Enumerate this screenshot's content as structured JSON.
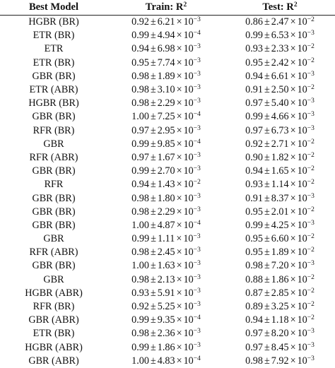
{
  "headers": {
    "model": "Best Model",
    "train": "Train: R",
    "test": "Test: R",
    "sq": "2"
  },
  "symbols": {
    "pm": "±",
    "times": "×",
    "base": "10"
  },
  "rows": [
    {
      "model": "HGBR (BR)",
      "train": {
        "m": "0.92",
        "e": "6.21",
        "x": "−3"
      },
      "test": {
        "m": "0.86",
        "e": "2.47",
        "x": "−2"
      }
    },
    {
      "model": "ETR (BR)",
      "train": {
        "m": "0.99",
        "e": "4.94",
        "x": "−4"
      },
      "test": {
        "m": "0.99",
        "e": "6.53",
        "x": "−3"
      }
    },
    {
      "model": "ETR",
      "train": {
        "m": "0.94",
        "e": "6.98",
        "x": "−3"
      },
      "test": {
        "m": "0.93",
        "e": "2.33",
        "x": "−2"
      }
    },
    {
      "model": "ETR (BR)",
      "train": {
        "m": "0.95",
        "e": "7.74",
        "x": "−3"
      },
      "test": {
        "m": "0.95",
        "e": "2.42",
        "x": "−2"
      }
    },
    {
      "model": "GBR (BR)",
      "train": {
        "m": "0.98",
        "e": "1.89",
        "x": "−3"
      },
      "test": {
        "m": "0.94",
        "e": "6.61",
        "x": "−3"
      }
    },
    {
      "model": "ETR (ABR)",
      "train": {
        "m": "0.98",
        "e": "3.10",
        "x": "−3"
      },
      "test": {
        "m": "0.91",
        "e": "2.50",
        "x": "−2"
      }
    },
    {
      "model": "HGBR (BR)",
      "train": {
        "m": "0.98",
        "e": "2.29",
        "x": "−3"
      },
      "test": {
        "m": "0.97",
        "e": "5.40",
        "x": "−3"
      }
    },
    {
      "model": "GBR (BR)",
      "train": {
        "m": "1.00",
        "e": "7.25",
        "x": "−4"
      },
      "test": {
        "m": "0.99",
        "e": "4.66",
        "x": "−3"
      }
    },
    {
      "model": "RFR (BR)",
      "train": {
        "m": "0.97",
        "e": "2.95",
        "x": "−3"
      },
      "test": {
        "m": "0.97",
        "e": "6.73",
        "x": "−3"
      }
    },
    {
      "model": "GBR",
      "train": {
        "m": "0.99",
        "e": "9.85",
        "x": "−4"
      },
      "test": {
        "m": "0.92",
        "e": "2.71",
        "x": "−2"
      }
    },
    {
      "model": "RFR (ABR)",
      "train": {
        "m": "0.97",
        "e": "1.67",
        "x": "−3"
      },
      "test": {
        "m": "0.90",
        "e": "1.82",
        "x": "−2"
      }
    },
    {
      "model": "GBR (BR)",
      "train": {
        "m": "0.99",
        "e": "2.70",
        "x": "−3"
      },
      "test": {
        "m": "0.94",
        "e": "1.65",
        "x": "−2"
      }
    },
    {
      "model": "RFR",
      "train": {
        "m": "0.94",
        "e": "1.43",
        "x": "−2"
      },
      "test": {
        "m": "0.93",
        "e": "1.14",
        "x": "−2"
      }
    },
    {
      "model": "GBR (BR)",
      "train": {
        "m": "0.98",
        "e": "1.80",
        "x": "−3"
      },
      "test": {
        "m": "0.91",
        "e": "8.37",
        "x": "−3"
      }
    },
    {
      "model": "GBR (BR)",
      "train": {
        "m": "0.98",
        "e": "2.29",
        "x": "−3"
      },
      "test": {
        "m": "0.95",
        "e": "2.01",
        "x": "−2"
      }
    },
    {
      "model": "GBR (BR)",
      "train": {
        "m": "1.00",
        "e": "4.87",
        "x": "−4"
      },
      "test": {
        "m": "0.99",
        "e": "4.25",
        "x": "−3"
      }
    },
    {
      "model": "GBR",
      "train": {
        "m": "0.99",
        "e": "1.11",
        "x": "−3"
      },
      "test": {
        "m": "0.95",
        "e": "6.60",
        "x": "−2"
      }
    },
    {
      "model": "RFR (ABR)",
      "train": {
        "m": "0.98",
        "e": "2.45",
        "x": "−3"
      },
      "test": {
        "m": "0.95",
        "e": "1.89",
        "x": "−2"
      }
    },
    {
      "model": "GBR (BR)",
      "train": {
        "m": "1.00",
        "e": "1.63",
        "x": "−3"
      },
      "test": {
        "m": "0.98",
        "e": "7.20",
        "x": "−3"
      }
    },
    {
      "model": "GBR",
      "train": {
        "m": "0.98",
        "e": "2.13",
        "x": "−3"
      },
      "test": {
        "m": "0.88",
        "e": "1.86",
        "x": "−2"
      }
    },
    {
      "model": "HGBR (ABR)",
      "train": {
        "m": "0.93",
        "e": "5.91",
        "x": "−3"
      },
      "test": {
        "m": "0.87",
        "e": "2.85",
        "x": "−2"
      }
    },
    {
      "model": "RFR (BR)",
      "train": {
        "m": "0.92",
        "e": "5.25",
        "x": "−3"
      },
      "test": {
        "m": "0.89",
        "e": "3.25",
        "x": "−2"
      }
    },
    {
      "model": "GBR (ABR)",
      "train": {
        "m": "0.99",
        "e": "9.35",
        "x": "−4"
      },
      "test": {
        "m": "0.94",
        "e": "1.18",
        "x": "−2"
      }
    },
    {
      "model": "ETR (BR)",
      "train": {
        "m": "0.98",
        "e": "2.36",
        "x": "−3"
      },
      "test": {
        "m": "0.97",
        "e": "8.20",
        "x": "−3"
      }
    },
    {
      "model": "HGBR (ABR)",
      "train": {
        "m": "0.99",
        "e": "1.86",
        "x": "−3"
      },
      "test": {
        "m": "0.97",
        "e": "8.45",
        "x": "−3"
      }
    },
    {
      "model": "GBR (ABR)",
      "train": {
        "m": "1.00",
        "e": "4.83",
        "x": "−4"
      },
      "test": {
        "m": "0.98",
        "e": "7.92",
        "x": "−3"
      }
    }
  ]
}
